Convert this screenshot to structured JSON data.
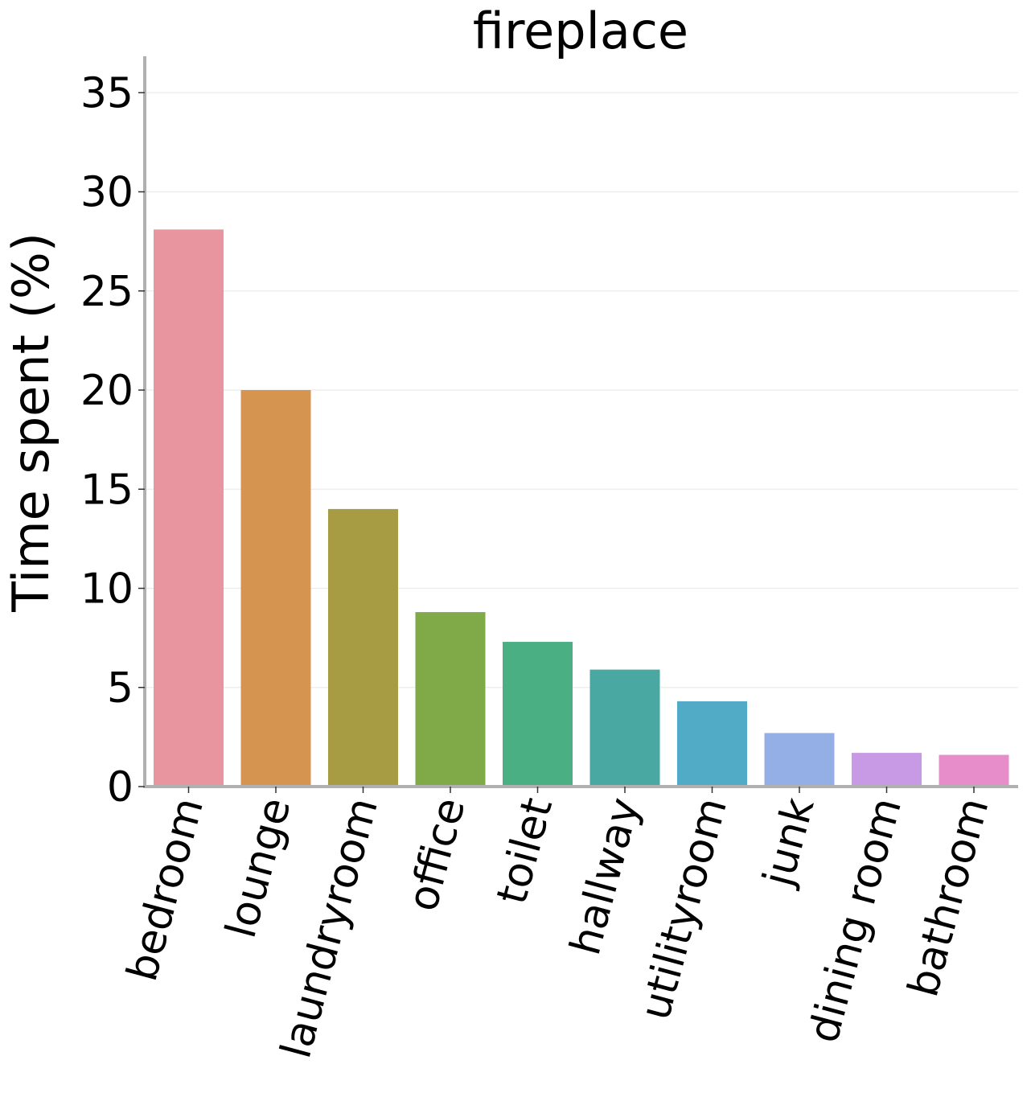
{
  "chart_data": {
    "type": "bar",
    "title": "fireplace",
    "xlabel": "",
    "ylabel": "Time spent (%)",
    "ylim": [
      0,
      37
    ],
    "yticks": [
      0,
      5,
      10,
      15,
      20,
      25,
      30,
      35
    ],
    "grid": "horizontal",
    "categories": [
      "bedroom",
      "lounge",
      "laundryroom",
      "office",
      "toilet",
      "hallway",
      "utilityroom",
      "junk",
      "dining room",
      "bathroom"
    ],
    "values": [
      28.1,
      20.0,
      14.0,
      8.8,
      7.3,
      5.9,
      4.3,
      2.7,
      1.7,
      1.6
    ],
    "colors": [
      "#e8959f",
      "#d5944f",
      "#a79c44",
      "#7faa47",
      "#4aaf83",
      "#4aa8a3",
      "#51abc6",
      "#94aee6",
      "#c89ae6",
      "#e78dc9"
    ]
  }
}
